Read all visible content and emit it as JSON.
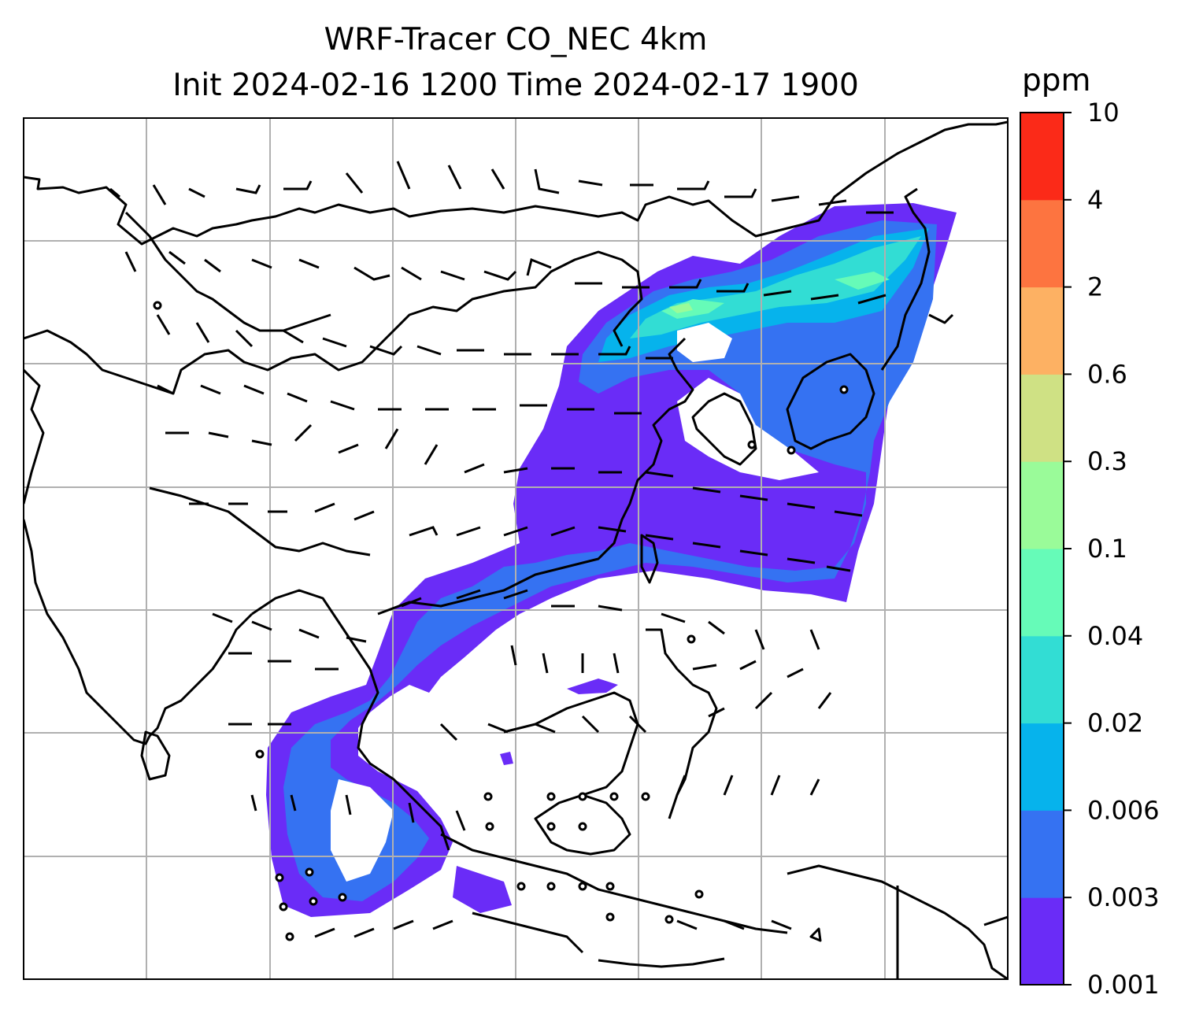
{
  "title": {
    "line1": "WRF-Tracer CO_NEC 4km",
    "line2": "Init 2024-02-16 1200 Time 2024-02-17 1900"
  },
  "colorbar": {
    "unit": "ppm",
    "levels": [
      "0.001",
      "0.003",
      "0.006",
      "0.02",
      "0.04",
      "0.1",
      "0.3",
      "0.6",
      "2",
      "4",
      "10"
    ],
    "colors": [
      "#6a2cf7",
      "#3572f2",
      "#06b3ec",
      "#32ddd4",
      "#66fbb8",
      "#9afb99",
      "#cfe184",
      "#fdb163",
      "#fd7440",
      "#fb2a18"
    ]
  },
  "map": {
    "frame_color": "#000000",
    "grid_color": "#b0b0b0",
    "coastline_color": "#000000",
    "wind_barb_color": "#000000"
  }
}
